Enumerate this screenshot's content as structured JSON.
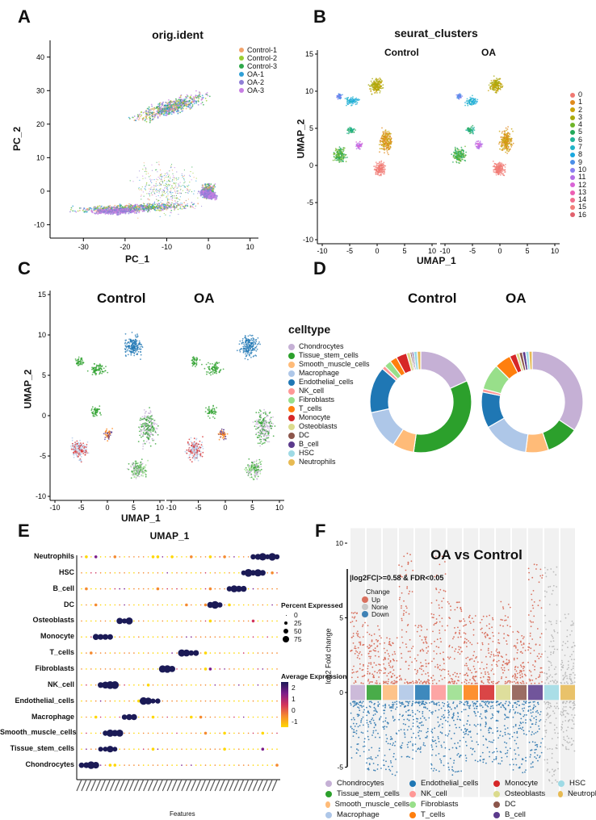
{
  "panel_labels": {
    "a": "A",
    "b": "B",
    "c": "C",
    "d": "D",
    "e": "E",
    "f": "F"
  },
  "colors": {
    "groups": {
      "Control-1": "#f2a36b",
      "Control-2": "#9acd32",
      "Control-3": "#2ea84a",
      "OA-1": "#2f9fd6",
      "OA-2": "#8f7fd6",
      "OA-3": "#c77ee3"
    },
    "clusters": [
      "#f07a73",
      "#e08a1c",
      "#caa40c",
      "#a8aa0c",
      "#6fb52a",
      "#24a95a",
      "#23b39a",
      "#20b3c7",
      "#1aa8df",
      "#4a8ee8",
      "#8a7ff0",
      "#b46fe8",
      "#d964d6",
      "#ec5fb3",
      "#f06e8d",
      "#f27f7a",
      "#e1616d"
    ],
    "celltypes": [
      "#c5b0d5",
      "#2ca02c",
      "#ffbb78",
      "#aec7e8",
      "#1f77b4",
      "#ff9896",
      "#98df8a",
      "#ff7f0e",
      "#d62728",
      "#dbdb8d",
      "#8c564b",
      "#5b3a8c",
      "#9edae5",
      "#e7ba52"
    ]
  },
  "chart_data": [
    {
      "id": "A",
      "type": "scatter",
      "title": "orig.ident",
      "xlabel": "PC_1",
      "ylabel": "PC_2",
      "xlim": [
        -38,
        12
      ],
      "ylim": [
        -14,
        45
      ],
      "xticks": [
        "-30",
        "-20",
        "-10",
        "0",
        "10"
      ],
      "yticks": [
        "40",
        "30",
        "20",
        "10",
        "0",
        "-10"
      ],
      "legend": [
        "Control-1",
        "Control-2",
        "Control-3",
        "OA-1",
        "OA-2",
        "OA-3"
      ]
    },
    {
      "id": "B",
      "type": "scatter",
      "title": "seurat_clusters",
      "xlabel": "UMAP_1",
      "ylabel": "UMAP_2",
      "facets": [
        "Control",
        "OA"
      ],
      "xticks": [
        "-10",
        "-5",
        "0",
        "5",
        "10"
      ],
      "yticks": [
        "15",
        "10",
        "5",
        "0",
        "-5",
        "-10"
      ],
      "legend": [
        "0",
        "1",
        "2",
        "3",
        "4",
        "5",
        "6",
        "7",
        "8",
        "9",
        "10",
        "11",
        "12",
        "13",
        "14",
        "15",
        "16"
      ]
    },
    {
      "id": "C",
      "type": "scatter",
      "xlabel": "UMAP_1",
      "ylabel": "UMAP_2",
      "facets": [
        "Control",
        "OA"
      ],
      "xticks": [
        "-10",
        "-5",
        "0",
        "5",
        "10"
      ],
      "yticks": [
        "15",
        "10",
        "5",
        "0",
        "-5",
        "-10"
      ],
      "legend_title": "celltype",
      "legend": [
        "Chondrocytes",
        "Tissue_stem_cells",
        "Smooth_muscle_cells",
        "Macrophage",
        "Endothelial_cells",
        "NK_cell",
        "Fibroblasts",
        "T_cells",
        "Monocyte",
        "Osteoblasts",
        "DC",
        "B_cell",
        "HSC",
        "Neutrophils"
      ]
    },
    {
      "id": "D",
      "type": "pie",
      "facets": [
        "Control",
        "OA"
      ],
      "categories": [
        "Chondrocytes",
        "Tissue_stem_cells",
        "Smooth_muscle_cells",
        "Macrophage",
        "Endothelial_cells",
        "NK_cell",
        "Fibroblasts",
        "T_cells",
        "Monocyte",
        "Osteoblasts",
        "DC",
        "B_cell",
        "HSC",
        "Neutrophils"
      ],
      "series": [
        {
          "name": "Control",
          "values": [
            16,
            30,
            6,
            11,
            13,
            1,
            2,
            2,
            3,
            1,
            0.5,
            0.5,
            1,
            1
          ]
        },
        {
          "name": "OA",
          "values": [
            33,
            10,
            7,
            14,
            11,
            1,
            8,
            5,
            2,
            1,
            1,
            1,
            1,
            1
          ]
        }
      ]
    },
    {
      "id": "E",
      "type": "dotplot",
      "xlabel": "Features",
      "rows": [
        "Neutrophils",
        "HSC",
        "B_cell",
        "DC",
        "Osteoblasts",
        "Monocyte",
        "T_cells",
        "Fibroblasts",
        "NK_cell",
        "Endothelial_cells",
        "Macrophage",
        "Smooth_muscle_cells",
        "Tissue_stem_cells",
        "Chondrocytes"
      ],
      "size_legend_title": "Percent Expressed",
      "size_legend": [
        "0",
        "25",
        "50",
        "75"
      ],
      "color_legend_title": "Average Expression",
      "color_legend": [
        "2",
        "1",
        "0",
        "-1"
      ],
      "n_features": 42
    },
    {
      "id": "F",
      "type": "scatter",
      "title": "OA vs Control",
      "subtitle": "|log2FC|>=0.58 & FDR<0.05",
      "ylabel": "log2 Fold change",
      "yticks": [
        "10",
        "5",
        "0",
        "-5"
      ],
      "legend_title": "Change",
      "change": [
        "Up",
        "None",
        "Down"
      ],
      "change_colors": [
        "#d9705e",
        "#c8c8c8",
        "#3f82b5"
      ],
      "groups": [
        "Chondrocytes",
        "Tissue_stem_cells",
        "Smooth_muscle_cells",
        "Macrophage",
        "Endothelial_cells",
        "NK_cell",
        "Fibroblasts",
        "T_cells",
        "Monocyte",
        "Osteoblasts",
        "DC",
        "B_cell",
        "HSC",
        "Neutrophils"
      ]
    }
  ]
}
